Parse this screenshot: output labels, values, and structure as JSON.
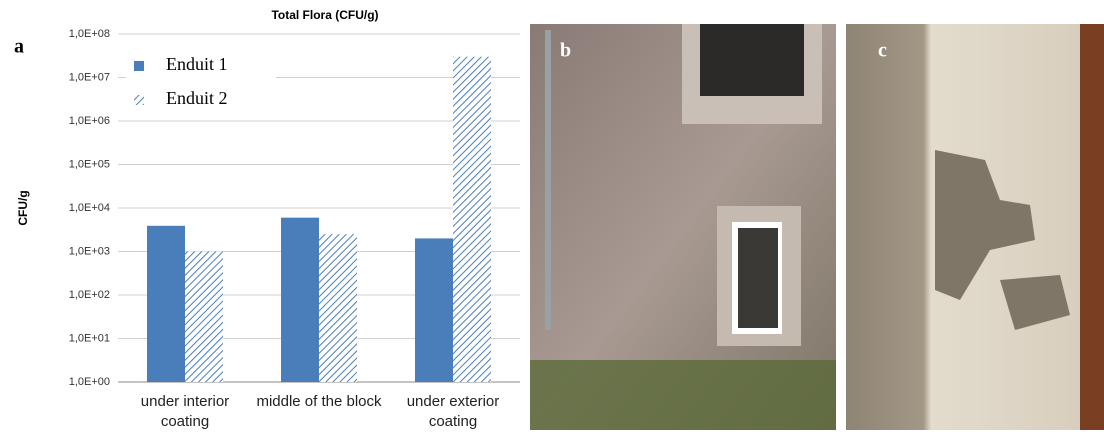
{
  "chart_data": {
    "type": "bar",
    "title": "Total Flora (CFU/g)",
    "y_label": "CFU/g",
    "categories": [
      "under interior coating",
      "middle of the block",
      "under exterior coating"
    ],
    "series": [
      {
        "name": "Enduit 1",
        "color": "#4a7ebb",
        "hatch": false,
        "values": [
          3900,
          6000,
          2000
        ]
      },
      {
        "name": "Enduit 2",
        "color": "#4a7ebb",
        "hatch": true,
        "values": [
          1000,
          2500,
          30000000
        ]
      }
    ],
    "log_scale": true,
    "ylim": [
      1,
      100000000
    ],
    "yticks": [
      {
        "value": 1,
        "label": "1,0E+00"
      },
      {
        "value": 10,
        "label": "1,0E+01"
      },
      {
        "value": 100,
        "label": "1,0E+02"
      },
      {
        "value": 1000,
        "label": "1,0E+03"
      },
      {
        "value": 10000,
        "label": "1,0E+04"
      },
      {
        "value": 100000,
        "label": "1,0E+05"
      },
      {
        "value": 1000000,
        "label": "1,0E+06"
      },
      {
        "value": 10000000,
        "label": "1,0E+07"
      },
      {
        "value": 100000000,
        "label": "1,0E+08"
      }
    ],
    "grid": true,
    "legend": "upper-left"
  },
  "panel_labels": [
    "a",
    "b",
    "c"
  ]
}
